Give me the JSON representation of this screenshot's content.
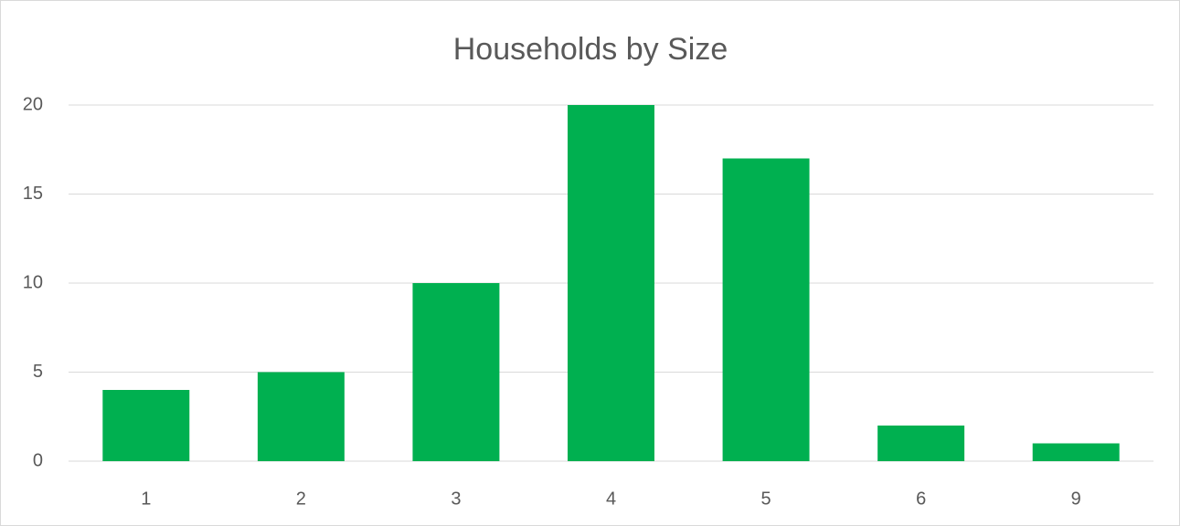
{
  "chart_data": {
    "type": "bar",
    "title": "Households by Size",
    "categories": [
      "1",
      "2",
      "3",
      "4",
      "5",
      "6",
      "9"
    ],
    "values": [
      4,
      5,
      10,
      20,
      17,
      2,
      1
    ],
    "color": "#00b050",
    "ylim": [
      0,
      20
    ],
    "yticks": [
      0,
      5,
      10,
      15,
      20
    ],
    "grid": true
  }
}
